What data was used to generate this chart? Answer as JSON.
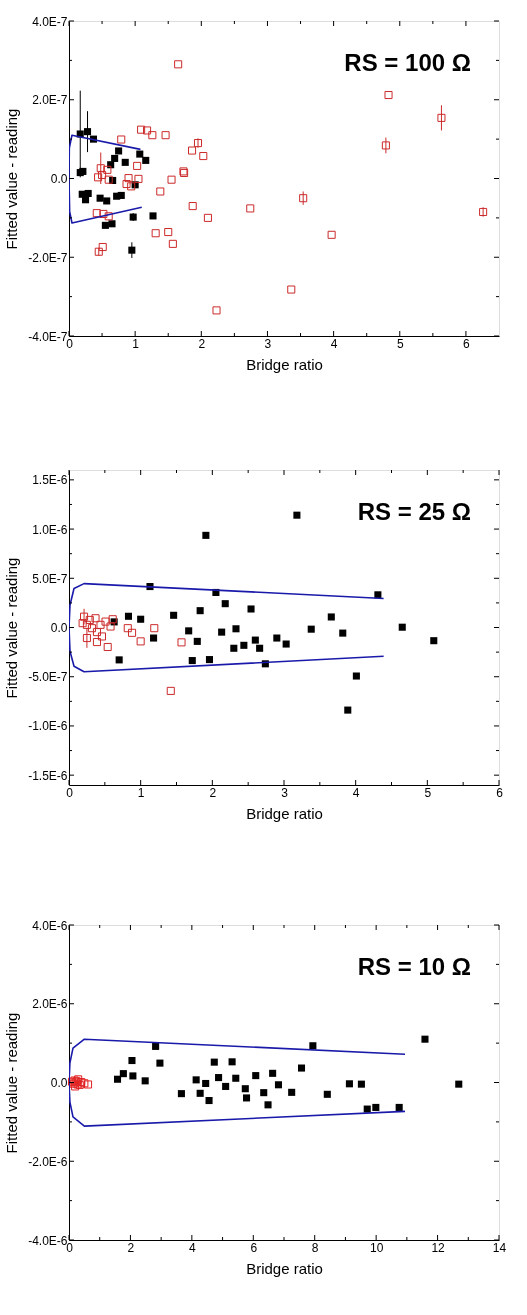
{
  "chart_data": [
    {
      "type": "scatter",
      "xlabel": "Bridge ratio",
      "ylabel": "Fitted value - reading",
      "annotations": [
        "RS = 100 Ω"
      ],
      "grid": false,
      "marker": "square",
      "xlim": [
        0,
        6.5
      ],
      "xticks": [
        0,
        {
          "value": 0.5,
          "label": null
        },
        1,
        {
          "value": 1.5,
          "label": null
        },
        2,
        {
          "value": 2.5,
          "label": null
        },
        3,
        {
          "value": 3.5,
          "label": null
        },
        4,
        {
          "value": 4.5,
          "label": null
        },
        5,
        {
          "value": 5.5,
          "label": null
        },
        6
      ],
      "ylim": [
        -4e-07,
        4e-07
      ],
      "yticks": [
        {
          "value": -4e-07,
          "label": "-4.0E-7"
        },
        {
          "value": -3e-07,
          "label": null
        },
        {
          "value": -2e-07,
          "label": "-2.0E-7"
        },
        {
          "value": -1e-07,
          "label": null
        },
        {
          "value": 0,
          "label": "0.0"
        },
        {
          "value": 1e-07,
          "label": null
        },
        {
          "value": 2e-07,
          "label": "2.0E-7"
        },
        {
          "value": 3e-07,
          "label": null
        },
        {
          "value": 4e-07,
          "label": "4.0E-7"
        }
      ],
      "series": [
        {
          "type": "scatter",
          "color": "#000000",
          "x": [
            0.17,
            0.28,
            0.37,
            0.17,
            0.21,
            0.2,
            0.29,
            0.25,
            0.47,
            0.57,
            0.55,
            0.65,
            0.63,
            0.69,
            0.75,
            0.85,
            0.66,
            0.72,
            0.79,
            1.0,
            1.07,
            1.16,
            0.97,
            1.27,
            0.95
          ],
          "values": [
            1.13e-07,
            1.19e-07,
            1e-07,
            1.5e-08,
            1.8e-08,
            -4e-08,
            -3.8e-08,
            -5.4e-08,
            -5e-08,
            -5.7e-08,
            -1.19e-07,
            -1.15e-07,
            3.5e-08,
            5.1e-08,
            7e-08,
            4.1e-08,
            -5e-09,
            -4.5e-08,
            -4.3e-08,
            -1.6e-08,
            6.2e-08,
            4.6e-08,
            -9.8e-08,
            -9.5e-08,
            -1.82e-07
          ],
          "errors": [
            1.1e-07,
            5.2e-08,
            null,
            null,
            null,
            null,
            null,
            null,
            null,
            null,
            null,
            null,
            null,
            null,
            null,
            null,
            null,
            null,
            null,
            null,
            null,
            null,
            1e-08,
            null,
            2e-08
          ]
        },
        {
          "type": "scatter",
          "color": "#cc2a2a",
          "x": [
            1.65,
            4.83,
            4.79,
            5.63,
            0.79,
            1.09,
            1.18,
            1.26,
            1.46,
            1.86,
            1.95,
            2.03,
            1.73,
            1.74,
            1.55,
            1.38,
            1.87,
            2.1,
            2.74,
            3.54,
            3.97,
            6.26,
            1.31,
            1.5,
            1.57,
            2.23,
            3.36,
            0.45,
            0.51,
            0.42,
            0.52,
            0.6,
            0.44,
            0.48,
            0.5,
            0.58,
            0.9,
            0.94,
            1.03,
            1.05,
            0.87,
            0.6
          ],
          "values": [
            2.9e-07,
            2.12e-07,
            8.4e-08,
            1.54e-07,
            9.9e-08,
            1.24e-07,
            1.22e-07,
            1.1e-07,
            1.1e-07,
            7.1e-08,
            9e-08,
            5.7e-08,
            1.8e-08,
            1.4e-08,
            -3e-09,
            -3.3e-08,
            -7e-08,
            -1e-07,
            -7.6e-08,
            -5e-08,
            -1.43e-07,
            -8.5e-08,
            -1.39e-07,
            -1.36e-07,
            -1.66e-07,
            -3.35e-07,
            -2.82e-07,
            -1.86e-07,
            -1.74e-07,
            -8.8e-08,
            -9e-08,
            -9.6e-08,
            3e-09,
            2.6e-08,
            9e-09,
            2.2e-08,
            1e-09,
            -2e-08,
            3.2e-08,
            -1e-09,
            -1.4e-08,
            -3e-09
          ],
          "errors": [
            null,
            null,
            2e-08,
            3.2e-08,
            null,
            null,
            null,
            null,
            null,
            null,
            1.2e-08,
            null,
            null,
            null,
            null,
            null,
            null,
            null,
            null,
            1.7e-08,
            null,
            1.2e-08,
            null,
            null,
            null,
            null,
            null,
            1e-08,
            null,
            null,
            null,
            null,
            null,
            4e-08,
            null,
            null,
            null,
            null,
            null,
            null,
            null,
            null
          ]
        },
        {
          "type": "line",
          "marker": "none",
          "color": "#1a1aaa",
          "x": [
            1.08,
            0.045,
            0.005,
            0,
            0.01,
            0.045,
            1.1
          ],
          "values": [
            7.4e-08,
            1.1e-07,
            7.7e-08,
            0,
            -8.4e-08,
            -1.13e-07,
            -7.3e-08
          ]
        }
      ]
    },
    {
      "type": "scatter",
      "xlabel": "Bridge ratio",
      "ylabel": "Fitted value - reading",
      "annotations": [
        "RS = 25 Ω"
      ],
      "grid": false,
      "marker": "square",
      "xlim": [
        0,
        6
      ],
      "xticks": [
        0,
        {
          "value": 0.5,
          "label": null
        },
        1,
        {
          "value": 1.5,
          "label": null
        },
        2,
        {
          "value": 2.5,
          "label": null
        },
        3,
        {
          "value": 3.5,
          "label": null
        },
        4,
        {
          "value": 4.5,
          "label": null
        },
        5,
        {
          "value": 5.5,
          "label": null
        },
        6
      ],
      "ylim": [
        -1.6e-06,
        1.6e-06
      ],
      "yticks": [
        {
          "value": -1.5e-06,
          "label": "-1.5E-6"
        },
        {
          "value": -1.25e-06,
          "label": null
        },
        {
          "value": -1e-06,
          "label": "-1.0E-6"
        },
        {
          "value": -7.5e-07,
          "label": null
        },
        {
          "value": -5e-07,
          "label": "-5.0E-7"
        },
        {
          "value": -2.5e-07,
          "label": null
        },
        {
          "value": 0,
          "label": "0.0"
        },
        {
          "value": 2.5e-07,
          "label": null
        },
        {
          "value": 5e-07,
          "label": "5.0E-7"
        },
        {
          "value": 7.5e-07,
          "label": null
        },
        {
          "value": 1e-06,
          "label": "1.0E-6"
        },
        {
          "value": 1.25e-06,
          "label": null
        },
        {
          "value": 1.5e-06,
          "label": "1.5E-6"
        }
      ],
      "series": [
        {
          "type": "scatter",
          "color": "#000000",
          "x": [
            0.63,
            0.7,
            0.83,
            1.0,
            1.13,
            1.18,
            1.46,
            1.67,
            1.72,
            1.79,
            1.83,
            1.91,
            1.96,
            2.05,
            2.13,
            2.18,
            2.3,
            2.33,
            2.44,
            2.54,
            2.6,
            2.66,
            2.74,
            2.9,
            3.03,
            3.18,
            3.38,
            3.66,
            3.82,
            3.89,
            4.01,
            4.31,
            4.65,
            5.09
          ],
          "values": [
            5.7e-08,
            -3.29e-07,
            1.14e-07,
            8.4e-08,
            4.16e-07,
            -1.07e-07,
            1.24e-07,
            -3.4e-08,
            -3.36e-07,
            -1.41e-07,
            1.71e-07,
            9.36e-07,
            -3.26e-07,
            3.56e-07,
            -4.7e-08,
            2.42e-07,
            -2.11e-07,
            -1.3e-08,
            -1.81e-07,
            1.88e-07,
            -1.28e-07,
            -2.11e-07,
            -3.69e-07,
            -1.07e-07,
            -1.68e-07,
            1.141e-06,
            -1.7e-08,
            1.07e-07,
            -5.7e-08,
            -8.39e-07,
            -4.93e-07,
            3.32e-07,
            3e-09,
            -1.34e-07
          ]
        },
        {
          "type": "scatter",
          "color": "#cc2a2a",
          "x": [
            0.19,
            0.21,
            0.25,
            0.29,
            0.32,
            0.37,
            0.39,
            0.39,
            0.44,
            0.46,
            0.51,
            0.54,
            0.58,
            0.61,
            0.82,
            0.88,
            1.0,
            1.19,
            1.57,
            1.42,
            0.25
          ],
          "values": [
            4.4e-08,
            1.1e-07,
            2.7e-08,
            7.7e-08,
            -7e-09,
            9.4e-08,
            -4.7e-08,
            -1.48e-07,
            2.7e-08,
            -9.1e-08,
            6e-08,
            -1.98e-07,
            1e-08,
            8.4e-08,
            -7e-09,
            -5.4e-08,
            -1.41e-07,
            -7e-09,
            -1.51e-07,
            -6.44e-07,
            -1.07e-07
          ],
          "errors": [
            null,
            8e-08,
            null,
            null,
            null,
            null,
            null,
            null,
            null,
            null,
            null,
            null,
            null,
            null,
            null,
            null,
            null,
            null,
            null,
            null,
            1e-07
          ]
        },
        {
          "type": "line",
          "marker": "none",
          "color": "#1a1aaa",
          "x": [
            4.39,
            0.21,
            0.07,
            0.014,
            0,
            0.014,
            0.07,
            0.21,
            4.39
          ],
          "values": [
            2.95e-07,
            4.46e-07,
            3.96e-07,
            2.28e-07,
            0,
            -2.42e-07,
            -3.93e-07,
            -4.5e-07,
            -2.92e-07
          ]
        }
      ]
    },
    {
      "type": "scatter",
      "xlabel": "Bridge ratio",
      "ylabel": "Fitted value - reading",
      "annotations": [
        "RS = 10 Ω"
      ],
      "grid": false,
      "marker": "square",
      "xlim": [
        0,
        14
      ],
      "xticks": [
        0,
        {
          "value": 1,
          "label": null
        },
        2,
        {
          "value": 3,
          "label": null
        },
        4,
        {
          "value": 5,
          "label": null
        },
        6,
        {
          "value": 7,
          "label": null
        },
        8,
        {
          "value": 9,
          "label": null
        },
        10,
        {
          "value": 11,
          "label": null
        },
        12,
        {
          "value": 13,
          "label": null
        },
        14
      ],
      "ylim": [
        -4e-06,
        4e-06
      ],
      "yticks": [
        {
          "value": -4e-06,
          "label": "-4.0E-6"
        },
        {
          "value": -3e-06,
          "label": null
        },
        {
          "value": -2e-06,
          "label": "-2.0E-6"
        },
        {
          "value": -1e-06,
          "label": null
        },
        {
          "value": 0,
          "label": "0.0"
        },
        {
          "value": 1e-06,
          "label": null
        },
        {
          "value": 2e-06,
          "label": "2.0E-6"
        },
        {
          "value": 3e-06,
          "label": null
        },
        {
          "value": 4e-06,
          "label": "4.0E-6"
        }
      ],
      "series": [
        {
          "type": "scatter",
          "color": "#000000",
          "x": [
            1.58,
            1.77,
            2.05,
            2.08,
            2.48,
            2.82,
            2.96,
            3.66,
            4.14,
            4.27,
            4.45,
            4.56,
            4.73,
            4.87,
            5.1,
            5.31,
            5.43,
            5.74,
            5.78,
            6.08,
            6.34,
            6.48,
            6.63,
            6.82,
            7.25,
            7.57,
            7.94,
            8.41,
            9.13,
            9.52,
            9.71,
            9.99,
            10.75,
            11.59,
            12.69
          ],
          "values": [
            8.3e-08,
            2.25e-07,
            5.58e-07,
            1.67e-07,
            4.2e-08,
            9.17e-07,
            4.92e-07,
            -2.83e-07,
            6.7e-08,
            -2.75e-07,
            -2.5e-08,
            -4.58e-07,
            5.17e-07,
            1.25e-07,
            -1e-07,
            5.25e-07,
            1.08e-07,
            -1.58e-07,
            -3.92e-07,
            1.75e-07,
            -2.58e-07,
            -5.67e-07,
            2.33e-07,
            -5.8e-08,
            -2.5e-07,
            3.67e-07,
            9.33e-07,
            -3e-07,
            -3.3e-08,
            -4.2e-08,
            -6.75e-07,
            -6.33e-07,
            -6.33e-07,
            1.1e-06,
            -4.2e-08
          ]
        },
        {
          "type": "scatter",
          "color": "#e02020",
          "x": [
            0.1,
            0.15,
            0.18,
            0.2,
            0.22,
            0.25,
            0.28,
            0.3,
            0.35,
            0.4,
            0.5,
            0.62
          ],
          "values": [
            2e-08,
            -3e-08,
            5e-08,
            -1e-07,
            0.0,
            3e-08,
            -5e-08,
            8e-08,
            -6e-08,
            1e-08,
            -2e-08,
            -5e-08
          ]
        },
        {
          "type": "line",
          "marker": "none",
          "color": "#1a1aaa",
          "x": [
            10.94,
            0.5,
            0.13,
            0.03,
            0,
            0.03,
            0.13,
            0.5,
            10.94
          ],
          "values": [
            7.17e-07,
            1.1e-06,
            8.75e-07,
            5e-07,
            0,
            -5e-07,
            -8.75e-07,
            -1.108e-06,
            -7.33e-07
          ]
        }
      ]
    }
  ]
}
